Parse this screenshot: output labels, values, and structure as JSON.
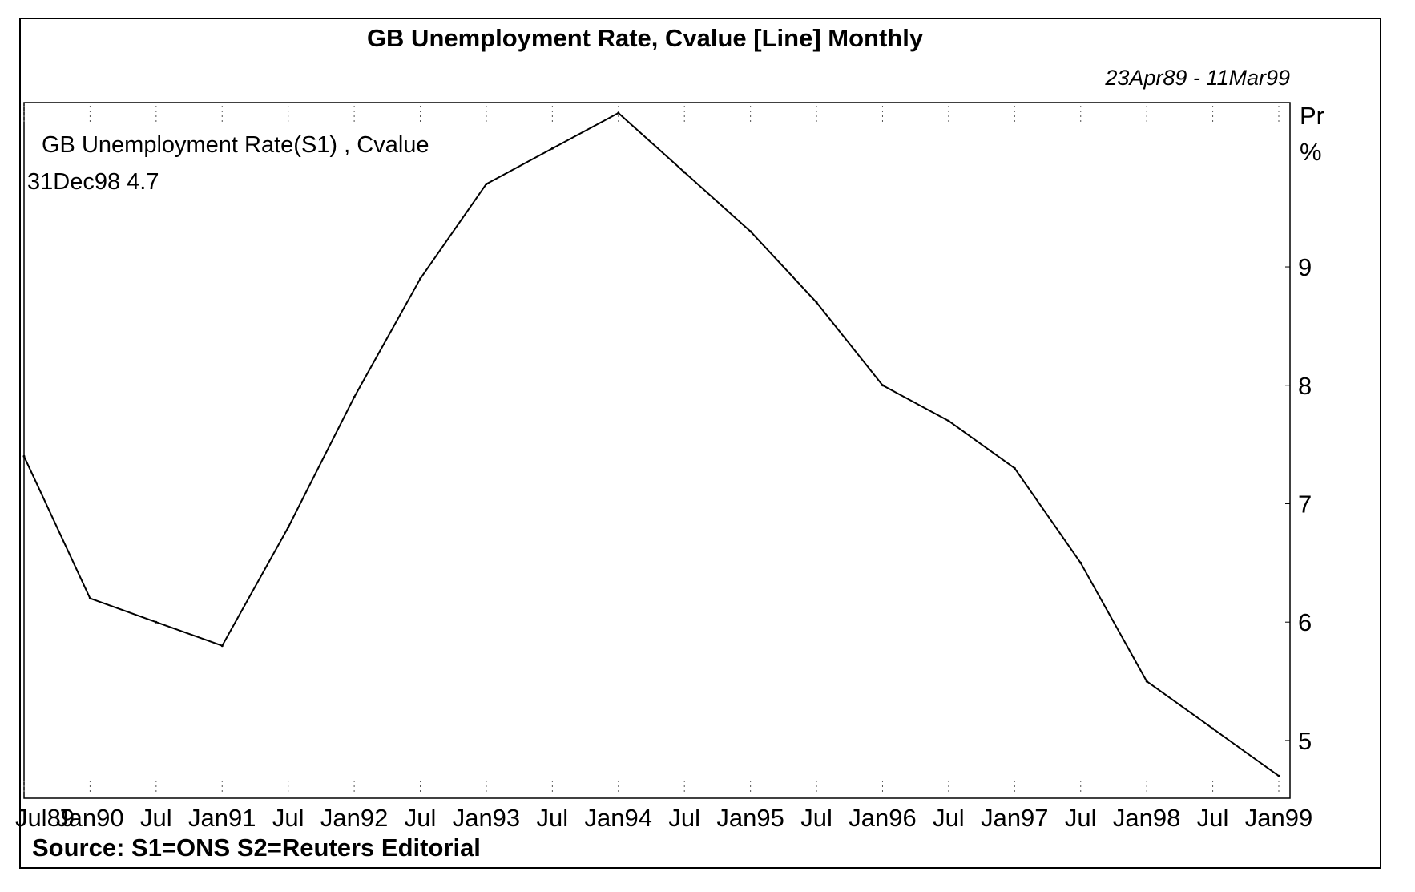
{
  "chart_data": {
    "type": "line",
    "title": "GB Unemployment Rate, Cvalue [Line] Monthly",
    "date_range": "23Apr89 - 11Mar99",
    "legend": {
      "series_label": "GB Unemployment Rate(S1) , Cvalue",
      "last_value": "31Dec98 4.7"
    },
    "y_axis": {
      "unit_line1": "Pr",
      "unit_line2": "%",
      "ticks": [
        "5",
        "6",
        "7",
        "8",
        "9"
      ],
      "tick_values": [
        5,
        6,
        7,
        8,
        9
      ],
      "range": [
        4.6,
        10.3
      ],
      "position": "right"
    },
    "x_axis": {
      "tick_labels": [
        "Jul89",
        "Jan90",
        "Jul",
        "Jan91",
        "Jul",
        "Jan92",
        "Jul",
        "Jan93",
        "Jul",
        "Jan94",
        "Jul",
        "Jan95",
        "Jul",
        "Jan96",
        "Jul",
        "Jan97",
        "Jul",
        "Jan98",
        "Jul",
        "Jan99"
      ],
      "range": [
        "1989-07",
        "1999-01"
      ]
    },
    "grid": "dotted vertical ticks",
    "series": [
      {
        "x": [
          "1989-07",
          "1990-01",
          "1990-07",
          "1991-01",
          "1991-07",
          "1992-01",
          "1992-07",
          "1993-01",
          "1993-07",
          "1994-01",
          "1994-07",
          "1995-01",
          "1995-07",
          "1996-01",
          "1996-07",
          "1997-01",
          "1997-07",
          "1998-01",
          "1998-07",
          "1999-01"
        ],
        "values": [
          7.4,
          6.2,
          6.0,
          5.8,
          6.8,
          7.9,
          8.9,
          9.7,
          10.0,
          10.3,
          9.8,
          9.3,
          8.7,
          8.0,
          7.7,
          7.3,
          6.5,
          5.5,
          5.1,
          4.7
        ]
      }
    ],
    "source": "Source: S1=ONS S2=Reuters Editorial"
  },
  "colors": {
    "line": "#000000",
    "background": "#ffffff",
    "frame": "#000000"
  }
}
